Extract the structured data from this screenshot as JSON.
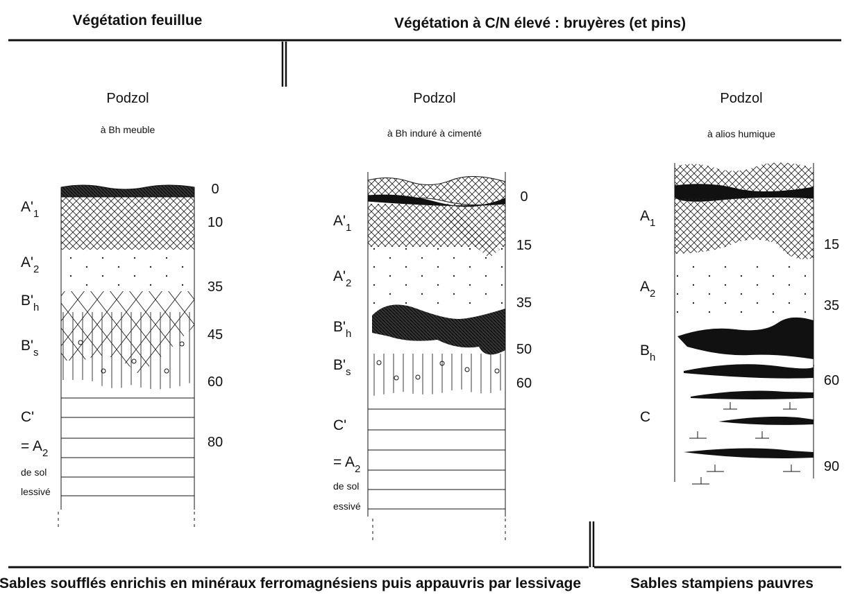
{
  "header": {
    "left": "Végétation feuillue",
    "right": "Végétation à C/N élevé : bruyères  (et pins)"
  },
  "profiles": [
    {
      "title": "Podzol",
      "subtitle": "à Bh meuble",
      "horizons": [
        {
          "text": "A'",
          "sub": "1"
        },
        {
          "text": "A'",
          "sub": "2"
        },
        {
          "text": "B'",
          "sub": "h"
        },
        {
          "text": "B'",
          "sub": "s"
        },
        {
          "text": "C'"
        },
        {
          "text": "= A",
          "sub": "2"
        },
        {
          "text": "de sol"
        },
        {
          "text": "lessivé"
        }
      ],
      "depths": [
        0,
        10,
        35,
        45,
        60,
        80
      ]
    },
    {
      "title": "Podzol",
      "subtitle": "à Bh induré à cimenté",
      "horizons": [
        {
          "text": "A'",
          "sub": "1"
        },
        {
          "text": "A'",
          "sub": "2"
        },
        {
          "text": "B'",
          "sub": "h"
        },
        {
          "text": "B'",
          "sub": "s"
        },
        {
          "text": "C'"
        },
        {
          "text": "= A",
          "sub": "2"
        },
        {
          "text": "de sol"
        },
        {
          "text": "essivé"
        }
      ],
      "depths": [
        0,
        15,
        35,
        50,
        60
      ]
    },
    {
      "title": "Podzol",
      "subtitle": "à alios humique",
      "horizons": [
        {
          "text": "A",
          "sub": "1"
        },
        {
          "text": "A",
          "sub": "2"
        },
        {
          "text": "B",
          "sub": "h"
        },
        {
          "text": "C"
        }
      ],
      "depths": [
        15,
        35,
        60,
        90
      ]
    }
  ],
  "footer": {
    "left": "Sables soufflés enrichis en minéraux ferromagnésiens puis appauvris par lessivage",
    "right": "Sables stampiens pauvres"
  }
}
